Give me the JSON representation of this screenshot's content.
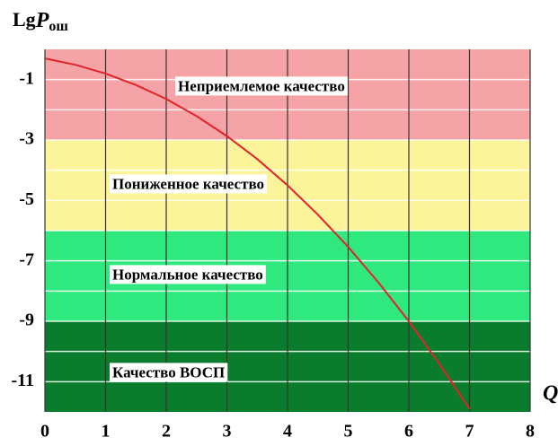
{
  "chart_data": {
    "type": "line",
    "ylabel": "Lg",
    "ylabel_symbol": "P",
    "ylabel_sub": "ош",
    "xlabel": "Q",
    "x": [
      0,
      0.5,
      1,
      1.5,
      2,
      2.5,
      3,
      3.5,
      4,
      4.5,
      5,
      5.5,
      6,
      6.5,
      7
    ],
    "series": [
      {
        "name": "LgPош",
        "color": "#e0242a",
        "values": [
          -0.3,
          -0.51,
          -0.8,
          -1.18,
          -1.64,
          -2.21,
          -2.87,
          -3.63,
          -4.5,
          -5.47,
          -6.54,
          -7.72,
          -9.0,
          -10.4,
          -11.9
        ]
      }
    ],
    "xlim": [
      0,
      8
    ],
    "xticks": [
      0,
      1,
      2,
      3,
      4,
      5,
      6,
      7,
      8
    ],
    "ylim": [
      -12,
      0
    ],
    "yticks": [
      -1,
      -3,
      -5,
      -7,
      -9,
      -11
    ],
    "yminorticks": [
      -2,
      -4,
      -6,
      -8,
      -10
    ],
    "grid": true,
    "bands": [
      {
        "from": 0,
        "to": -3,
        "color": "#f5a3a6",
        "label": "Неприемлемое качество"
      },
      {
        "from": -3,
        "to": -6,
        "color": "#fbf49a",
        "label": "Пониженное качество"
      },
      {
        "from": -6,
        "to": -9,
        "color": "#2fe87e",
        "label": "Нормальное качество"
      },
      {
        "from": -9,
        "to": -12,
        "color": "#0a7d2c",
        "label": "Качество ВОСП"
      }
    ]
  }
}
